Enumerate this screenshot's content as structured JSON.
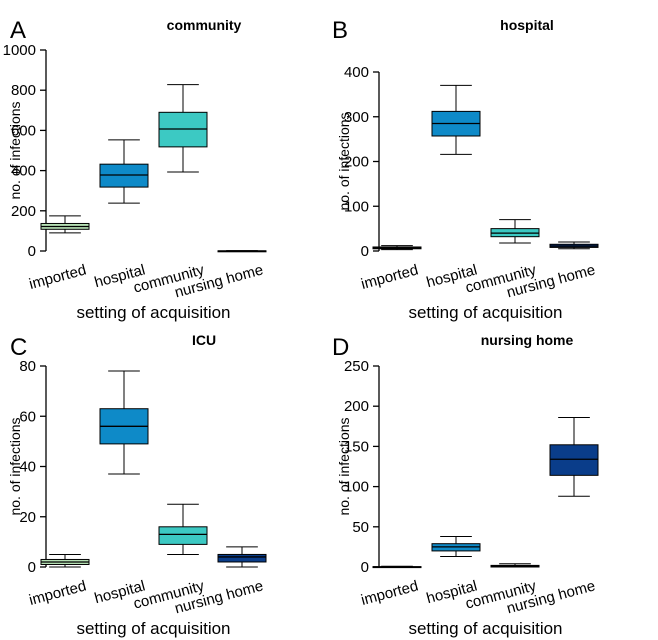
{
  "chart_data": [
    {
      "panel": "A",
      "type": "box",
      "title": "community",
      "xlabel": "setting of acquisition",
      "ylabel": "no. of infections",
      "ylim": [
        0,
        1000
      ],
      "yticks": [
        0,
        200,
        400,
        600,
        800,
        1000
      ],
      "categories": [
        "imported",
        "hospital",
        "community",
        "nursing home"
      ],
      "colors": [
        "#b7e1b5",
        "#0e8ac8",
        "#3cc9c3",
        "#0a3d8a"
      ],
      "boxes": [
        {
          "min": 90,
          "q1": 108,
          "median": 122,
          "q3": 137,
          "max": 175
        },
        {
          "min": 238,
          "q1": 318,
          "median": 378,
          "q3": 432,
          "max": 553
        },
        {
          "min": 393,
          "q1": 518,
          "median": 607,
          "q3": 690,
          "max": 828
        },
        {
          "min": 0,
          "q1": 0,
          "median": 0,
          "q3": 1,
          "max": 2
        }
      ]
    },
    {
      "panel": "B",
      "type": "box",
      "title": "hospital",
      "xlabel": "setting of acquisition",
      "ylabel": "no. of infections",
      "ylim": [
        0,
        400
      ],
      "yticks": [
        0,
        100,
        200,
        300,
        400
      ],
      "categories": [
        "imported",
        "hospital",
        "community",
        "nursing home"
      ],
      "colors": [
        "#b7e1b5",
        "#0e8ac8",
        "#3cc9c3",
        "#0a3d8a"
      ],
      "boxes": [
        {
          "min": 3,
          "q1": 5,
          "median": 7,
          "q3": 9,
          "max": 12
        },
        {
          "min": 216,
          "q1": 257,
          "median": 285,
          "q3": 312,
          "max": 370
        },
        {
          "min": 18,
          "q1": 32,
          "median": 40,
          "q3": 50,
          "max": 70
        },
        {
          "min": 5,
          "q1": 8,
          "median": 11,
          "q3": 15,
          "max": 20
        }
      ]
    },
    {
      "panel": "C",
      "type": "box",
      "title": "ICU",
      "xlabel": "setting of acquisition",
      "ylabel": "no. of infections",
      "ylim": [
        0,
        80
      ],
      "yticks": [
        0,
        20,
        40,
        60,
        80
      ],
      "categories": [
        "imported",
        "hospital",
        "community",
        "nursing home"
      ],
      "colors": [
        "#b7e1b5",
        "#0e8ac8",
        "#3cc9c3",
        "#0a3d8a"
      ],
      "boxes": [
        {
          "min": 0,
          "q1": 1,
          "median": 2,
          "q3": 3,
          "max": 5
        },
        {
          "min": 37,
          "q1": 49,
          "median": 56,
          "q3": 63,
          "max": 78
        },
        {
          "min": 5,
          "q1": 9,
          "median": 13,
          "q3": 16,
          "max": 25
        },
        {
          "min": 0,
          "q1": 2,
          "median": 4,
          "q3": 5,
          "max": 8
        }
      ]
    },
    {
      "panel": "D",
      "type": "box",
      "title": "nursing home",
      "xlabel": "setting of acquisition",
      "ylabel": "no. of infections",
      "ylim": [
        0,
        250
      ],
      "yticks": [
        0,
        50,
        100,
        150,
        200,
        250
      ],
      "categories": [
        "imported",
        "hospital",
        "community",
        "nursing home"
      ],
      "colors": [
        "#b7e1b5",
        "#0e8ac8",
        "#3cc9c3",
        "#0a3d8a"
      ],
      "boxes": [
        {
          "min": 0,
          "q1": 0,
          "median": 0,
          "q3": 0.5,
          "max": 1
        },
        {
          "min": 13,
          "q1": 20,
          "median": 25,
          "q3": 29,
          "max": 38
        },
        {
          "min": 0,
          "q1": 0,
          "median": 1,
          "q3": 2,
          "max": 4
        },
        {
          "min": 88,
          "q1": 114,
          "median": 134,
          "q3": 152,
          "max": 186
        }
      ]
    }
  ]
}
